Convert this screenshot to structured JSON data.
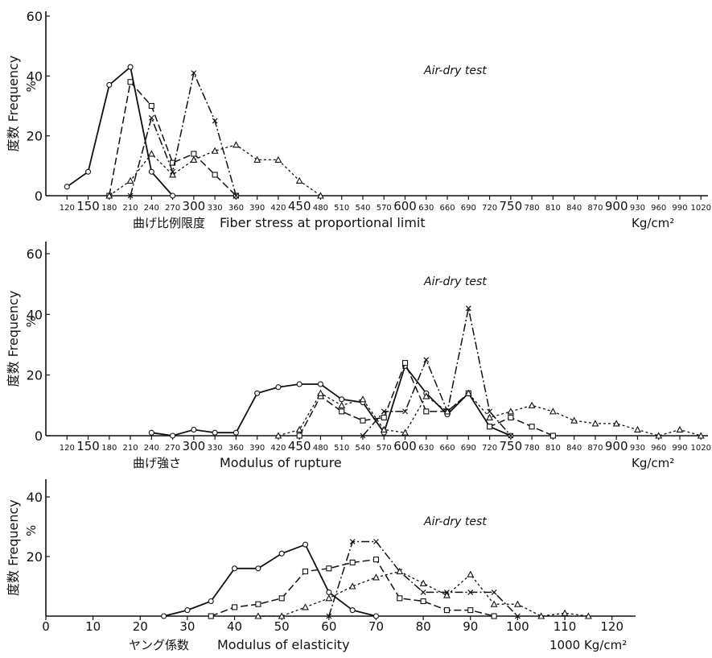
{
  "chart_data": [
    {
      "type": "line",
      "annotation": "Air-dry test",
      "ylabel_jp": "度数",
      "ylabel": "Frequency",
      "yunit": "%",
      "xlabel_jp": "曲げ比例限度",
      "xlabel": "Fiber stress at proportional limit",
      "xunit": "Kg/cm²",
      "xlim": [
        90,
        1030
      ],
      "ylim": [
        0,
        60
      ],
      "yticks": [
        0,
        20,
        40,
        60
      ],
      "xticks": [
        120,
        150,
        180,
        210,
        240,
        270,
        300,
        330,
        360,
        390,
        420,
        450,
        480,
        510,
        540,
        570,
        600,
        630,
        660,
        690,
        720,
        750,
        780,
        810,
        840,
        870,
        900,
        930,
        960,
        990,
        1020
      ],
      "series": [
        {
          "style": "solid",
          "marker": "circle",
          "x": [
            120,
            150,
            180,
            210,
            240,
            270
          ],
          "y": [
            3,
            8,
            37,
            43,
            8,
            0
          ]
        },
        {
          "style": "dash",
          "marker": "square",
          "x": [
            180,
            210,
            240,
            270,
            300,
            330,
            360
          ],
          "y": [
            0,
            38,
            30,
            11,
            14,
            7,
            0
          ]
        },
        {
          "style": "dashdot",
          "marker": "x",
          "x": [
            210,
            240,
            270,
            300,
            330,
            360
          ],
          "y": [
            0,
            26,
            8,
            41,
            25,
            0
          ]
        },
        {
          "style": "dot",
          "marker": "triangle",
          "x": [
            180,
            210,
            240,
            270,
            300,
            330,
            360,
            390,
            420,
            450,
            480
          ],
          "y": [
            0,
            5,
            14,
            7,
            12,
            15,
            17,
            12,
            12,
            5,
            0
          ]
        }
      ]
    },
    {
      "type": "line",
      "annotation": "Air-dry test",
      "ylabel_jp": "度数",
      "ylabel": "Frequency",
      "yunit": "%",
      "xlabel_jp": "曲げ強さ",
      "xlabel": "Modulus of rupture",
      "xunit": "Kg/cm²",
      "xlim": [
        90,
        1030
      ],
      "ylim": [
        0,
        60
      ],
      "yticks": [
        0,
        20,
        40,
        60
      ],
      "xticks": [
        120,
        150,
        180,
        210,
        240,
        270,
        300,
        330,
        360,
        390,
        420,
        450,
        480,
        510,
        540,
        570,
        600,
        630,
        660,
        690,
        720,
        750,
        780,
        810,
        840,
        870,
        900,
        930,
        960,
        990,
        1020
      ],
      "series": [
        {
          "style": "solid",
          "marker": "circle",
          "x": [
            240,
            270,
            300,
            330,
            360,
            390,
            420,
            450,
            480,
            510,
            540,
            570,
            600,
            630,
            660,
            690,
            720,
            750
          ],
          "y": [
            1,
            0,
            2,
            1,
            1,
            14,
            16,
            17,
            17,
            12,
            11,
            1,
            23,
            14,
            7,
            14,
            3,
            0
          ]
        },
        {
          "style": "dash",
          "marker": "square",
          "x": [
            450,
            480,
            510,
            540,
            570,
            600,
            630,
            660,
            690,
            720,
            750,
            780,
            810
          ],
          "y": [
            0,
            13,
            8,
            5,
            6,
            24,
            8,
            8,
            14,
            3,
            6,
            3,
            0
          ]
        },
        {
          "style": "dashdot",
          "marker": "x",
          "x": [
            540,
            570,
            600,
            630,
            660,
            690,
            720,
            750
          ],
          "y": [
            0,
            8,
            8,
            25,
            8,
            42,
            8,
            0
          ]
        },
        {
          "style": "dot",
          "marker": "triangle",
          "x": [
            420,
            450,
            480,
            510,
            540,
            570,
            600,
            630,
            660,
            690,
            720,
            750,
            780,
            810,
            840,
            870,
            900,
            930,
            960,
            990,
            1020
          ],
          "y": [
            0,
            2,
            14,
            10,
            12,
            2,
            1,
            13,
            8,
            14,
            6,
            8,
            10,
            8,
            5,
            4,
            4,
            2,
            0,
            2,
            0
          ]
        }
      ]
    },
    {
      "type": "line",
      "annotation": "Air-dry test",
      "ylabel_jp": "度数",
      "ylabel": "Frequency",
      "yunit": "%",
      "xlabel_jp": "ヤング係数",
      "xlabel": "Modulus of elasticity",
      "xunit": "1000 Kg/cm²",
      "xlim": [
        0,
        125
      ],
      "ylim": [
        0,
        40
      ],
      "yticks": [
        20,
        40
      ],
      "xticks": [
        0,
        10,
        20,
        30,
        40,
        50,
        60,
        70,
        80,
        90,
        100,
        110,
        120
      ],
      "series": [
        {
          "style": "solid",
          "marker": "circle",
          "x": [
            25,
            30,
            35,
            40,
            45,
            50,
            55,
            60,
            65,
            70
          ],
          "y": [
            0,
            2,
            5,
            16,
            16,
            21,
            24,
            8,
            2,
            0
          ]
        },
        {
          "style": "dash",
          "marker": "square",
          "x": [
            35,
            40,
            45,
            50,
            55,
            60,
            65,
            70,
            75,
            80,
            85,
            90,
            95
          ],
          "y": [
            0,
            3,
            4,
            6,
            15,
            16,
            18,
            19,
            6,
            5,
            2,
            2,
            0
          ]
        },
        {
          "style": "dashdot",
          "marker": "x",
          "x": [
            60,
            65,
            70,
            75,
            80,
            85,
            90,
            95,
            100
          ],
          "y": [
            0,
            25,
            25,
            15,
            8,
            8,
            8,
            8,
            0
          ]
        },
        {
          "style": "dot",
          "marker": "triangle",
          "x": [
            45,
            50,
            55,
            60,
            65,
            70,
            75,
            80,
            85,
            90,
            95,
            100,
            105,
            110,
            115
          ],
          "y": [
            0,
            0,
            3,
            6,
            10,
            13,
            15,
            11,
            7,
            14,
            4,
            4,
            0,
            1,
            0
          ]
        }
      ]
    }
  ]
}
